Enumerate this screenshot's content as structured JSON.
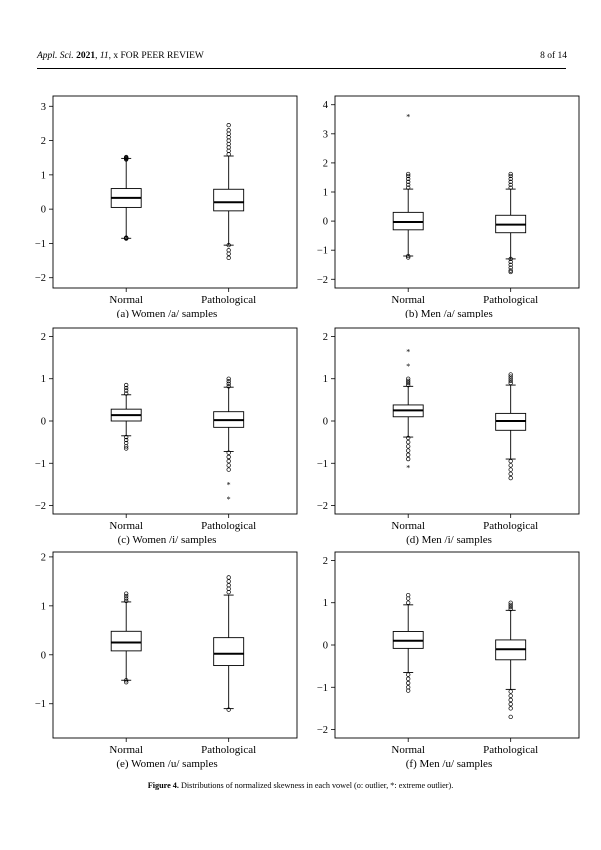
{
  "header": {
    "journal": "Appl. Sci.",
    "year": "2021",
    "volume": "11",
    "status": ", x FOR PEER REVIEW",
    "page": "8 of 14"
  },
  "caption": {
    "label": "Figure 4.",
    "text": " Distributions of normalized skewness in each vowel (o: outlier, *: extreme outlier)."
  },
  "chart_data": [
    {
      "type": "boxplot",
      "title": "(a) Women /a/ samples",
      "ylim": [
        -2.3,
        3.3
      ],
      "yticks": [
        -2,
        -1,
        0,
        1,
        2,
        3
      ],
      "categories": [
        "Normal",
        "Pathological"
      ],
      "boxes": [
        {
          "whisker_low": -0.85,
          "q1": 0.05,
          "median": 0.33,
          "q3": 0.6,
          "whisker_high": 1.48,
          "outliers_low": [
            -0.86,
            -0.85,
            -0.84,
            -0.83
          ],
          "outliers_high": [
            1.45,
            1.47,
            1.49,
            1.5,
            1.52
          ],
          "extreme": []
        },
        {
          "whisker_low": -1.05,
          "q1": -0.05,
          "median": 0.2,
          "q3": 0.58,
          "whisker_high": 1.55,
          "outliers_low": [
            -1.05,
            -1.2,
            -1.3,
            -1.42
          ],
          "outliers_high": [
            1.6,
            1.7,
            1.8,
            1.9,
            2.0,
            2.1,
            2.2,
            2.3,
            2.45
          ],
          "extreme": []
        }
      ]
    },
    {
      "type": "boxplot",
      "title": "(b) Men /a/ samples",
      "ylim": [
        -2.3,
        4.3
      ],
      "yticks": [
        -2,
        -1,
        0,
        1,
        2,
        3,
        4
      ],
      "categories": [
        "Normal",
        "Pathological"
      ],
      "boxes": [
        {
          "whisker_low": -1.2,
          "q1": -0.3,
          "median": -0.03,
          "q3": 0.3,
          "whisker_high": 1.1,
          "outliers_low": [
            -1.2,
            -1.25
          ],
          "outliers_high": [
            1.15,
            1.25,
            1.35,
            1.45,
            1.55,
            1.62
          ],
          "extreme": [
            3.6
          ]
        },
        {
          "whisker_low": -1.3,
          "q1": -0.4,
          "median": -0.12,
          "q3": 0.2,
          "whisker_high": 1.1,
          "outliers_low": [
            -1.3,
            -1.4,
            -1.5,
            -1.6,
            -1.7,
            -1.75
          ],
          "outliers_high": [
            1.15,
            1.25,
            1.35,
            1.45,
            1.55,
            1.62
          ],
          "extreme": []
        }
      ]
    },
    {
      "type": "boxplot",
      "title": "(c) Women /i/ samples",
      "ylim": [
        -2.2,
        2.2
      ],
      "yticks": [
        -2,
        -1,
        0,
        1,
        2
      ],
      "categories": [
        "Normal",
        "Pathological"
      ],
      "boxes": [
        {
          "whisker_low": -0.35,
          "q1": 0.0,
          "median": 0.14,
          "q3": 0.28,
          "whisker_high": 0.62,
          "outliers_low": [
            -0.38,
            -0.45,
            -0.52,
            -0.6,
            -0.65
          ],
          "outliers_high": [
            0.65,
            0.72,
            0.78,
            0.85
          ],
          "extreme": []
        },
        {
          "whisker_low": -0.72,
          "q1": -0.15,
          "median": 0.02,
          "q3": 0.22,
          "whisker_high": 0.8,
          "outliers_low": [
            -0.75,
            -0.85,
            -0.95,
            -1.05,
            -1.15
          ],
          "outliers_high": [
            0.82,
            0.88,
            0.94,
            1.0
          ],
          "extreme": [
            -1.5,
            -1.85
          ]
        }
      ]
    },
    {
      "type": "boxplot",
      "title": "(d) Men /i/ samples",
      "ylim": [
        -2.2,
        2.2
      ],
      "yticks": [
        -2,
        -1,
        0,
        1,
        2
      ],
      "categories": [
        "Normal",
        "Pathological"
      ],
      "boxes": [
        {
          "whisker_low": -0.38,
          "q1": 0.1,
          "median": 0.25,
          "q3": 0.38,
          "whisker_high": 0.82,
          "outliers_low": [
            -0.4,
            -0.5,
            -0.6,
            -0.7,
            -0.8,
            -0.9
          ],
          "outliers_high": [
            0.85,
            0.9,
            0.95,
            1.0
          ],
          "extreme": [
            1.3,
            1.65,
            -1.1
          ]
        },
        {
          "whisker_low": -0.9,
          "q1": -0.22,
          "median": 0.0,
          "q3": 0.18,
          "whisker_high": 0.85,
          "outliers_low": [
            -0.95,
            -1.05,
            -1.15,
            -1.25,
            -1.35
          ],
          "outliers_high": [
            0.9,
            0.95,
            1.0,
            1.05,
            1.1
          ],
          "extreme": []
        }
      ]
    },
    {
      "type": "boxplot",
      "title": "(e) Women /u/ samples",
      "ylim": [
        -1.7,
        2.1
      ],
      "yticks": [
        -1,
        0,
        1,
        2
      ],
      "categories": [
        "Normal",
        "Pathological"
      ],
      "boxes": [
        {
          "whisker_low": -0.52,
          "q1": 0.08,
          "median": 0.25,
          "q3": 0.48,
          "whisker_high": 1.08,
          "outliers_low": [
            -0.52,
            -0.56
          ],
          "outliers_high": [
            1.1,
            1.15,
            1.2,
            1.25
          ],
          "extreme": []
        },
        {
          "whisker_low": -1.1,
          "q1": -0.22,
          "median": 0.02,
          "q3": 0.35,
          "whisker_high": 1.22,
          "outliers_low": [
            -1.12
          ],
          "outliers_high": [
            1.28,
            1.35,
            1.42,
            1.5,
            1.58
          ],
          "extreme": []
        }
      ]
    },
    {
      "type": "boxplot",
      "title": "(f) Men /u/ samples",
      "ylim": [
        -2.2,
        2.2
      ],
      "yticks": [
        -2,
        -1,
        0,
        1,
        2
      ],
      "categories": [
        "Normal",
        "Pathological"
      ],
      "boxes": [
        {
          "whisker_low": -0.65,
          "q1": -0.08,
          "median": 0.1,
          "q3": 0.32,
          "whisker_high": 0.95,
          "outliers_low": [
            -0.7,
            -0.8,
            -0.9,
            -1.0,
            -1.08
          ],
          "outliers_high": [
            1.0,
            1.1,
            1.18
          ],
          "extreme": []
        },
        {
          "whisker_low": -1.05,
          "q1": -0.35,
          "median": -0.1,
          "q3": 0.12,
          "whisker_high": 0.82,
          "outliers_low": [
            -1.1,
            -1.2,
            -1.3,
            -1.4,
            -1.5,
            -1.7
          ],
          "outliers_high": [
            0.85,
            0.9,
            0.95,
            1.0
          ],
          "extreme": []
        }
      ]
    }
  ]
}
